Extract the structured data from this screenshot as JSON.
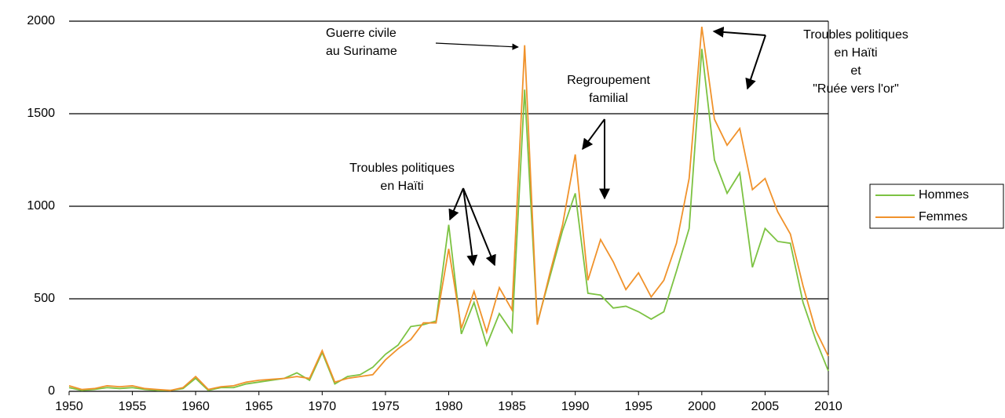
{
  "chart_data": {
    "type": "line",
    "x": [
      1950,
      1951,
      1952,
      1953,
      1954,
      1955,
      1956,
      1957,
      1958,
      1959,
      1960,
      1961,
      1962,
      1963,
      1964,
      1965,
      1966,
      1967,
      1968,
      1969,
      1970,
      1971,
      1972,
      1973,
      1974,
      1975,
      1976,
      1977,
      1978,
      1979,
      1980,
      1981,
      1982,
      1983,
      1984,
      1985,
      1986,
      1987,
      1988,
      1989,
      1990,
      1991,
      1992,
      1993,
      1994,
      1995,
      1996,
      1997,
      1998,
      1999,
      2000,
      2001,
      2002,
      2003,
      2004,
      2005,
      2006,
      2007,
      2008,
      2009,
      2010
    ],
    "series": [
      {
        "name": "Hommes",
        "color": "#7cc242",
        "values": [
          20,
          5,
          10,
          20,
          15,
          20,
          10,
          5,
          5,
          15,
          70,
          5,
          20,
          20,
          40,
          50,
          60,
          70,
          100,
          60,
          210,
          40,
          80,
          90,
          130,
          200,
          250,
          350,
          360,
          380,
          900,
          310,
          480,
          250,
          420,
          320,
          1630,
          370,
          620,
          870,
          1070,
          530,
          520,
          450,
          460,
          430,
          390,
          430,
          650,
          880,
          1850,
          1250,
          1070,
          1180,
          670,
          880,
          810,
          800,
          480,
          280,
          110
        ]
      },
      {
        "name": "Femmes",
        "color": "#f0922b",
        "values": [
          30,
          10,
          15,
          30,
          25,
          30,
          15,
          10,
          5,
          20,
          80,
          10,
          25,
          30,
          50,
          60,
          65,
          70,
          80,
          70,
          220,
          50,
          70,
          80,
          90,
          170,
          230,
          280,
          370,
          370,
          770,
          340,
          540,
          320,
          560,
          440,
          1870,
          360,
          640,
          900,
          1280,
          600,
          820,
          700,
          550,
          640,
          510,
          600,
          800,
          1150,
          1970,
          1470,
          1330,
          1420,
          1090,
          1150,
          970,
          850,
          570,
          330,
          190
        ]
      }
    ],
    "xlim": [
      1950,
      2010
    ],
    "xticks": [
      1950,
      1955,
      1960,
      1965,
      1970,
      1975,
      1980,
      1985,
      1990,
      1995,
      2000,
      2005,
      2010
    ],
    "ylim": [
      0,
      2000
    ],
    "yticks": [
      0,
      500,
      1000,
      1500,
      2000
    ],
    "grid": true,
    "legend": "right",
    "annotations": [
      [
        "Troubles politiques",
        "en Haïti"
      ],
      [
        "Guerre civile",
        "au Suriname"
      ],
      [
        "Regroupement",
        "familial"
      ],
      [
        "Troubles politiques",
        "en Haïti",
        "et",
        "\"Ruée vers l'or\""
      ]
    ]
  }
}
